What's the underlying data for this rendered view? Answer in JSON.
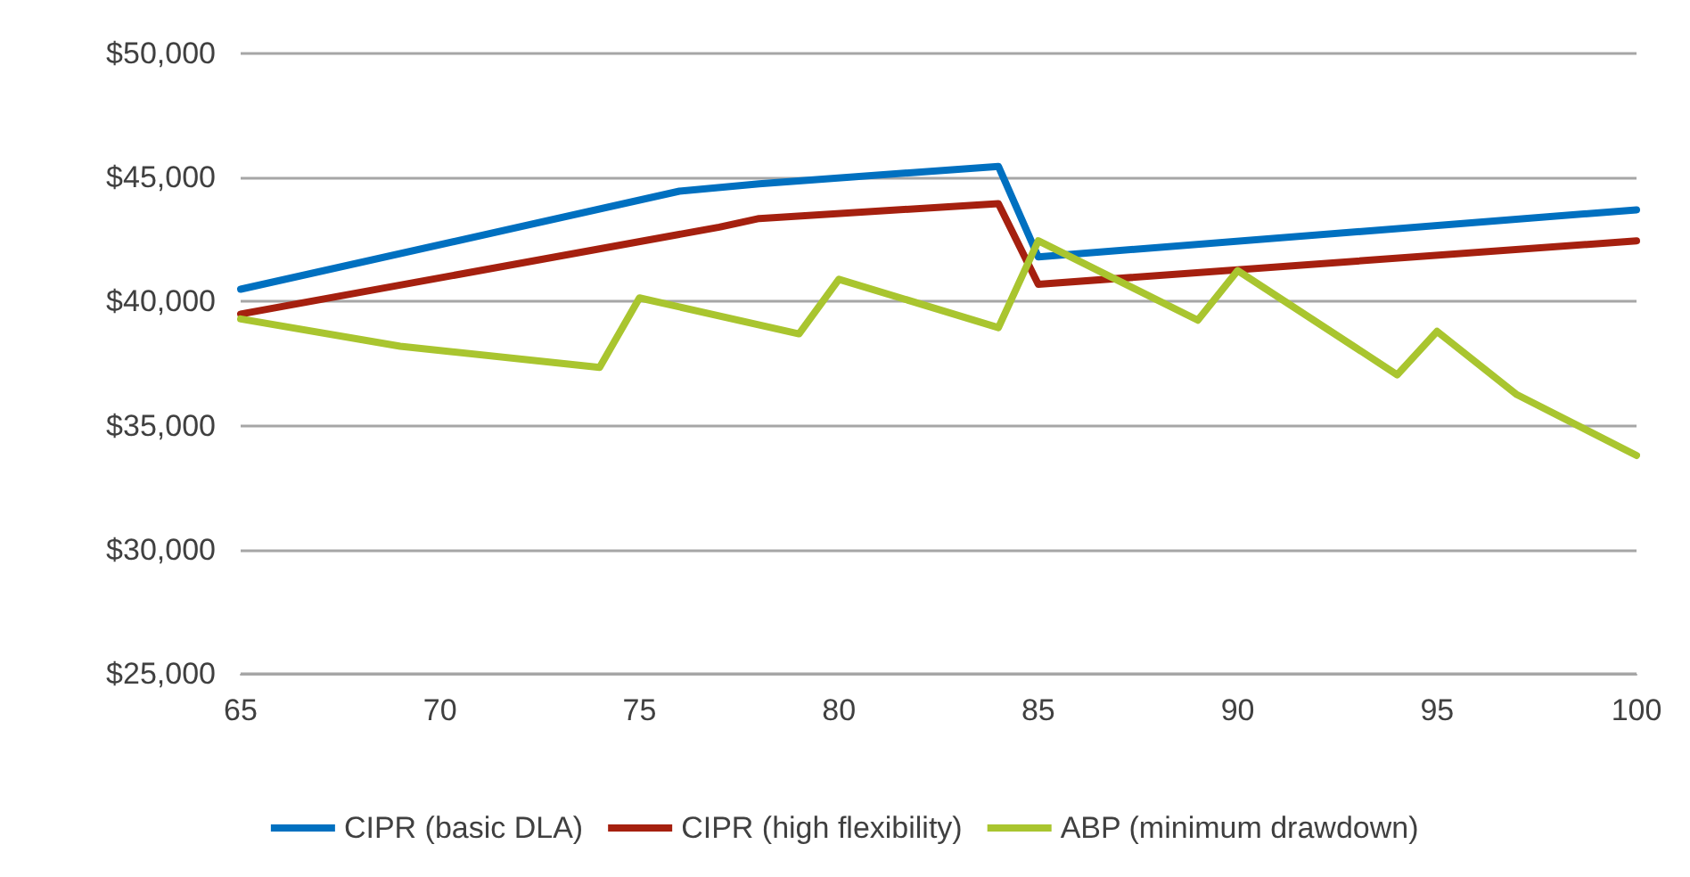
{
  "chart_data": {
    "type": "line",
    "xlim": [
      65,
      100
    ],
    "xticks": [
      65,
      70,
      75,
      80,
      85,
      90,
      95,
      100
    ],
    "ylim": [
      25000,
      50000
    ],
    "yticks": [
      {
        "value": 25000,
        "label": "$25,000"
      },
      {
        "value": 30000,
        "label": "$30,000"
      },
      {
        "value": 35000,
        "label": "$35,000"
      },
      {
        "value": 40000,
        "label": "$40,000"
      },
      {
        "value": 45000,
        "label": "$45,000"
      },
      {
        "value": 50000,
        "label": "$50,000"
      }
    ],
    "grid": "y",
    "legend": "bottom",
    "marker": "none",
    "line_style": "solid",
    "series": [
      {
        "name": "CIPR (basic DLA)",
        "color": "#0070c0",
        "x": [
          65,
          76,
          78,
          84,
          85,
          100
        ],
        "values": [
          40500,
          44450,
          44750,
          45450,
          41800,
          43700
        ]
      },
      {
        "name": "CIPR (high flexibility)",
        "color": "#a5200f",
        "x": [
          65,
          77,
          78,
          84,
          85,
          100
        ],
        "values": [
          39500,
          43000,
          43350,
          43950,
          40700,
          42450
        ]
      },
      {
        "name": "ABP (minimum drawdown)",
        "color": "#a9c52f",
        "x": [
          65,
          69,
          74,
          75,
          79,
          80,
          84,
          85,
          89,
          90,
          94,
          95,
          97,
          100
        ],
        "values": [
          39300,
          38200,
          37350,
          40150,
          38700,
          40900,
          38950,
          42450,
          39250,
          41250,
          37050,
          38800,
          36250,
          33800
        ]
      }
    ]
  }
}
